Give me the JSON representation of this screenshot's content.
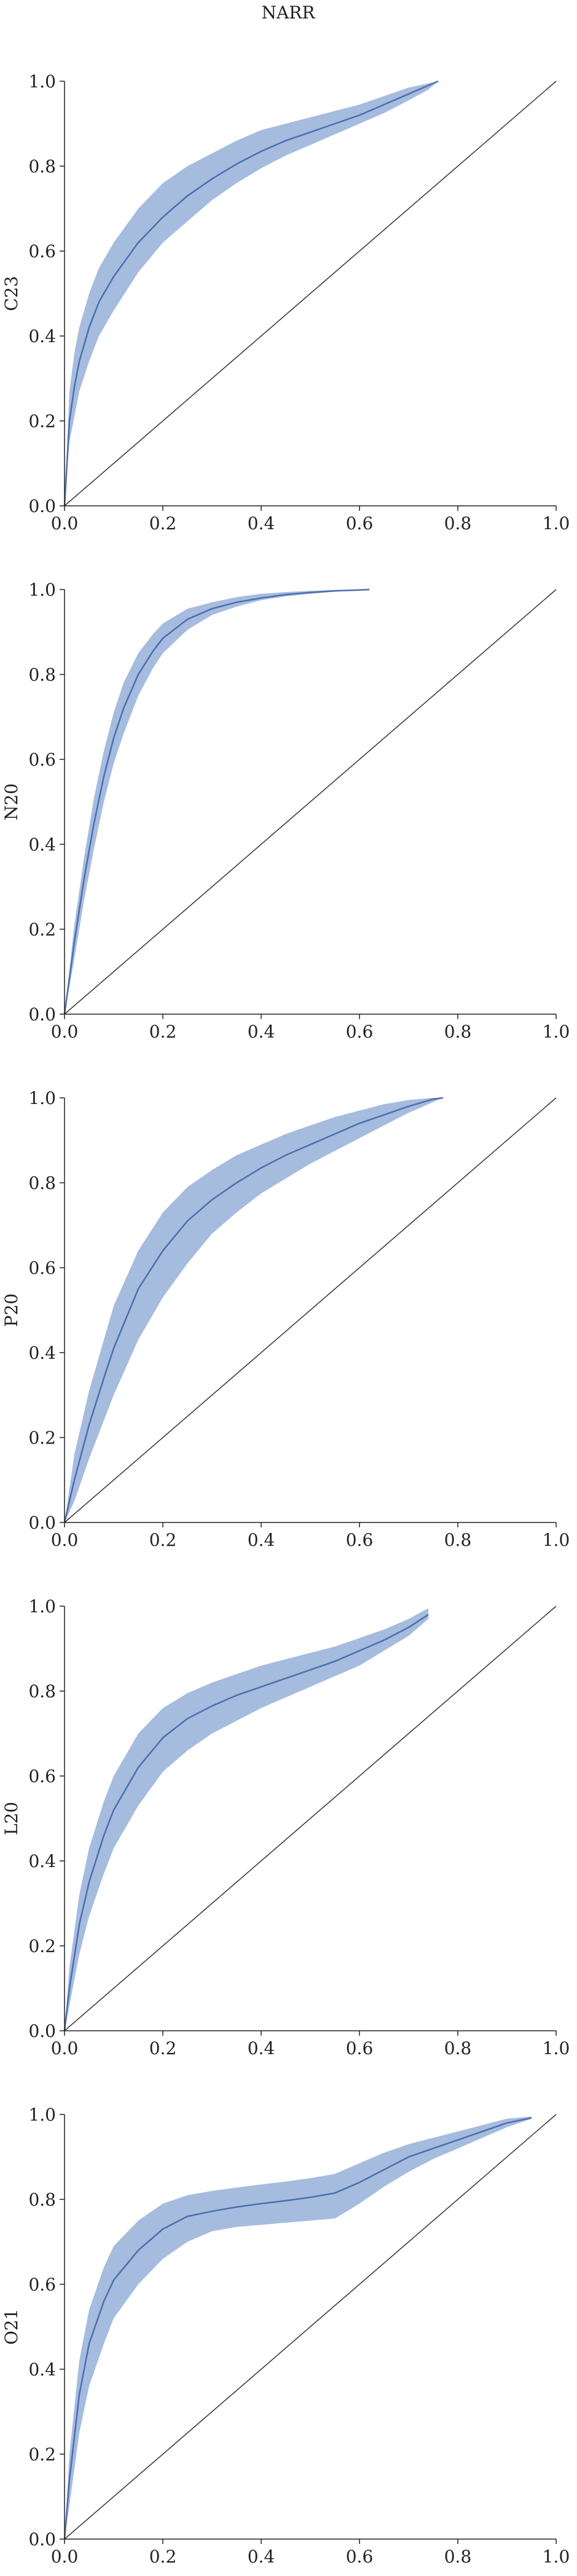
{
  "figure": {
    "title": "NARR"
  },
  "style": {
    "line_color": "#4c6eae",
    "band_color": "#7f9fd2",
    "band_opacity": 0.7,
    "diagonal_color": "#333333",
    "axis_color": "#222222"
  },
  "chart_data": [
    {
      "type": "line",
      "title": "",
      "xlabel": "",
      "ylabel": "C23",
      "xlim": [
        0,
        1
      ],
      "ylim": [
        0,
        1
      ],
      "xticks": [
        "0.0",
        "0.2",
        "0.4",
        "0.6",
        "0.8",
        "1.0"
      ],
      "yticks": [
        "0.0",
        "0.2",
        "0.4",
        "0.6",
        "0.8",
        "1.0"
      ],
      "grid": false,
      "reference_line": {
        "x": [
          0,
          1
        ],
        "y": [
          0,
          1
        ]
      },
      "series": [
        {
          "x": [
            0,
            0.01,
            0.02,
            0.03,
            0.05,
            0.07,
            0.1,
            0.15,
            0.2,
            0.25,
            0.3,
            0.35,
            0.4,
            0.45,
            0.5,
            0.55,
            0.6,
            0.65,
            0.7,
            0.74,
            0.76
          ],
          "y": [
            0,
            0.2,
            0.28,
            0.34,
            0.42,
            0.48,
            0.54,
            0.62,
            0.68,
            0.73,
            0.77,
            0.805,
            0.835,
            0.86,
            0.88,
            0.9,
            0.92,
            0.945,
            0.97,
            0.99,
            1.0
          ],
          "lower": [
            0,
            0.15,
            0.21,
            0.27,
            0.34,
            0.4,
            0.46,
            0.55,
            0.62,
            0.67,
            0.72,
            0.76,
            0.795,
            0.825,
            0.85,
            0.875,
            0.9,
            0.925,
            0.955,
            0.98,
            1.0
          ],
          "upper": [
            0,
            0.27,
            0.36,
            0.42,
            0.5,
            0.56,
            0.62,
            0.7,
            0.76,
            0.8,
            0.83,
            0.86,
            0.885,
            0.9,
            0.915,
            0.93,
            0.945,
            0.965,
            0.985,
            0.995,
            1.0
          ]
        }
      ]
    },
    {
      "type": "line",
      "title": "",
      "xlabel": "",
      "ylabel": "N20",
      "xlim": [
        0,
        1
      ],
      "ylim": [
        0,
        1
      ],
      "xticks": [
        "0.0",
        "0.2",
        "0.4",
        "0.6",
        "0.8",
        "1.0"
      ],
      "yticks": [
        "0.0",
        "0.2",
        "0.4",
        "0.6",
        "0.8",
        "1.0"
      ],
      "grid": false,
      "reference_line": {
        "x": [
          0,
          1
        ],
        "y": [
          0,
          1
        ]
      },
      "series": [
        {
          "x": [
            0,
            0.02,
            0.04,
            0.06,
            0.08,
            0.1,
            0.12,
            0.15,
            0.18,
            0.2,
            0.25,
            0.3,
            0.35,
            0.4,
            0.45,
            0.5,
            0.55,
            0.6,
            0.62
          ],
          "y": [
            0,
            0.17,
            0.32,
            0.45,
            0.56,
            0.65,
            0.72,
            0.8,
            0.855,
            0.885,
            0.93,
            0.955,
            0.97,
            0.98,
            0.988,
            0.993,
            0.997,
            0.999,
            1.0
          ],
          "lower": [
            0,
            0.13,
            0.27,
            0.39,
            0.5,
            0.59,
            0.66,
            0.75,
            0.815,
            0.85,
            0.905,
            0.94,
            0.96,
            0.975,
            0.984,
            0.99,
            0.995,
            0.998,
            1.0
          ],
          "upper": [
            0,
            0.21,
            0.37,
            0.51,
            0.62,
            0.71,
            0.78,
            0.85,
            0.895,
            0.92,
            0.955,
            0.97,
            0.982,
            0.99,
            0.994,
            0.997,
            0.999,
            1.0,
            1.0
          ]
        }
      ]
    },
    {
      "type": "line",
      "title": "",
      "xlabel": "",
      "ylabel": "P20",
      "xlim": [
        0,
        1
      ],
      "ylim": [
        0,
        1
      ],
      "xticks": [
        "0.0",
        "0.2",
        "0.4",
        "0.6",
        "0.8",
        "1.0"
      ],
      "yticks": [
        "0.0",
        "0.2",
        "0.4",
        "0.6",
        "0.8",
        "1.0"
      ],
      "grid": false,
      "reference_line": {
        "x": [
          0,
          1
        ],
        "y": [
          0,
          1
        ]
      },
      "series": [
        {
          "x": [
            0,
            0.02,
            0.05,
            0.08,
            0.1,
            0.15,
            0.2,
            0.25,
            0.3,
            0.35,
            0.4,
            0.45,
            0.5,
            0.55,
            0.6,
            0.65,
            0.7,
            0.75,
            0.77
          ],
          "y": [
            0,
            0.1,
            0.23,
            0.34,
            0.41,
            0.55,
            0.64,
            0.71,
            0.76,
            0.8,
            0.835,
            0.865,
            0.89,
            0.915,
            0.94,
            0.96,
            0.98,
            0.997,
            1.0
          ],
          "lower": [
            0,
            0.05,
            0.15,
            0.24,
            0.3,
            0.43,
            0.53,
            0.61,
            0.68,
            0.73,
            0.775,
            0.81,
            0.845,
            0.875,
            0.905,
            0.935,
            0.965,
            0.99,
            1.0
          ],
          "upper": [
            0,
            0.16,
            0.31,
            0.43,
            0.51,
            0.64,
            0.73,
            0.79,
            0.83,
            0.865,
            0.89,
            0.915,
            0.935,
            0.955,
            0.97,
            0.985,
            0.995,
            1.0,
            1.0
          ]
        }
      ]
    },
    {
      "type": "line",
      "title": "",
      "xlabel": "",
      "ylabel": "L20",
      "xlim": [
        0,
        1
      ],
      "ylim": [
        0,
        1
      ],
      "xticks": [
        "0.0",
        "0.2",
        "0.4",
        "0.6",
        "0.8",
        "1.0"
      ],
      "yticks": [
        "0.0",
        "0.2",
        "0.4",
        "0.6",
        "0.8",
        "1.0"
      ],
      "grid": false,
      "reference_line": {
        "x": [
          0,
          1
        ],
        "y": [
          0,
          1
        ]
      },
      "series": [
        {
          "x": [
            0,
            0.01,
            0.03,
            0.05,
            0.08,
            0.1,
            0.15,
            0.2,
            0.25,
            0.3,
            0.35,
            0.4,
            0.45,
            0.5,
            0.55,
            0.6,
            0.65,
            0.7,
            0.74
          ],
          "y": [
            0,
            0.1,
            0.25,
            0.35,
            0.46,
            0.52,
            0.62,
            0.69,
            0.735,
            0.765,
            0.79,
            0.81,
            0.83,
            0.85,
            0.87,
            0.895,
            0.92,
            0.95,
            0.98
          ],
          "lower": [
            0,
            0.06,
            0.18,
            0.27,
            0.37,
            0.43,
            0.53,
            0.61,
            0.66,
            0.7,
            0.73,
            0.76,
            0.785,
            0.81,
            0.835,
            0.86,
            0.895,
            0.93,
            0.97
          ],
          "upper": [
            0,
            0.15,
            0.32,
            0.43,
            0.54,
            0.6,
            0.7,
            0.76,
            0.795,
            0.82,
            0.84,
            0.86,
            0.875,
            0.89,
            0.905,
            0.925,
            0.945,
            0.97,
            0.995
          ]
        }
      ]
    },
    {
      "type": "line",
      "title": "",
      "xlabel": "",
      "ylabel": "O21",
      "xlim": [
        0,
        1
      ],
      "ylim": [
        0,
        1
      ],
      "xticks": [
        "0.0",
        "0.2",
        "0.4",
        "0.6",
        "0.8",
        "1.0"
      ],
      "yticks": [
        "0.0",
        "0.2",
        "0.4",
        "0.6",
        "0.8",
        "1.0"
      ],
      "grid": false,
      "reference_line": {
        "x": [
          0,
          1
        ],
        "y": [
          0,
          1
        ]
      },
      "series": [
        {
          "x": [
            0,
            0.01,
            0.03,
            0.05,
            0.08,
            0.1,
            0.15,
            0.2,
            0.25,
            0.3,
            0.35,
            0.4,
            0.45,
            0.5,
            0.55,
            0.6,
            0.65,
            0.7,
            0.75,
            0.8,
            0.85,
            0.9,
            0.95
          ],
          "y": [
            0,
            0.14,
            0.34,
            0.46,
            0.56,
            0.61,
            0.68,
            0.73,
            0.76,
            0.772,
            0.782,
            0.79,
            0.797,
            0.805,
            0.815,
            0.84,
            0.87,
            0.9,
            0.92,
            0.94,
            0.96,
            0.98,
            0.992
          ],
          "lower": [
            0,
            0.08,
            0.25,
            0.36,
            0.46,
            0.52,
            0.6,
            0.66,
            0.7,
            0.725,
            0.735,
            0.74,
            0.745,
            0.75,
            0.755,
            0.79,
            0.83,
            0.865,
            0.895,
            0.92,
            0.945,
            0.97,
            0.99
          ],
          "upper": [
            0,
            0.2,
            0.42,
            0.54,
            0.64,
            0.69,
            0.75,
            0.79,
            0.81,
            0.82,
            0.828,
            0.835,
            0.842,
            0.85,
            0.86,
            0.885,
            0.91,
            0.93,
            0.945,
            0.96,
            0.975,
            0.99,
            0.995
          ]
        }
      ]
    }
  ]
}
